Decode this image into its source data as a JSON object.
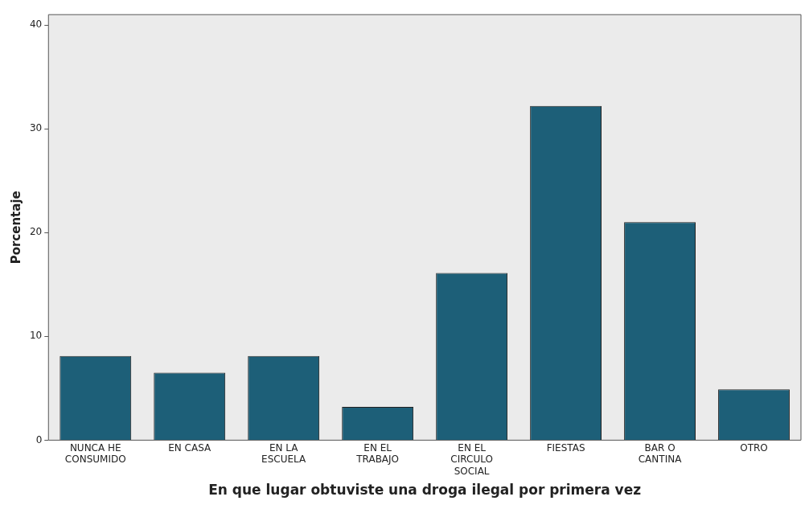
{
  "chart_data": {
    "type": "bar",
    "xlabel": "En que lugar obtuviste una droga ilegal por primera vez",
    "ylabel": "Porcentaje",
    "categories": [
      "NUNCA HE\nCONSUMIDO",
      "EN CASA",
      "EN LA\nESCUELA",
      "EN EL\nTRABAJO",
      "EN EL\nCIRCULO\nSOCIAL",
      "FIESTAS",
      "BAR O\nCANTINA",
      "OTRO"
    ],
    "values": [
      8.1,
      6.5,
      8.1,
      3.2,
      16.1,
      32.2,
      21.0,
      4.9
    ],
    "color": "#1d5f78",
    "ylim": [
      0,
      41
    ],
    "yticks": [
      0,
      10,
      20,
      30,
      40
    ],
    "grid": false,
    "legend": false
  }
}
